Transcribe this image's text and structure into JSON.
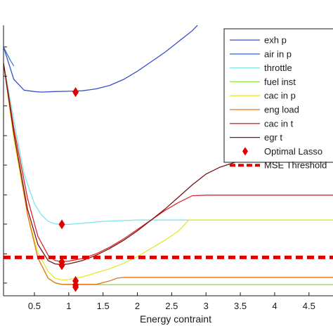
{
  "chart_data": {
    "type": "line",
    "title": "",
    "xlabel": "Energy contraint",
    "ylabel": "",
    "xlim": [
      0.05,
      4.85
    ],
    "ylim": [
      0,
      1
    ],
    "grid": false,
    "legend_position": "top-right",
    "x_ticks": [
      0.5,
      1,
      1.5,
      2,
      2.5,
      3,
      3.5,
      4,
      4.5
    ],
    "x_tick_labels": [
      "0.5",
      "1",
      "1.5",
      "2",
      "2.5",
      "3",
      "3.5",
      "4",
      "4.5"
    ],
    "y_ticks": [
      0.047,
      0.155,
      0.265,
      0.373,
      0.483,
      0.592,
      0.702,
      0.812,
      0.92
    ],
    "series": [
      {
        "name": "exh p",
        "color": "#3b4fc4",
        "points": [
          [
            0.05,
            0.92
          ],
          [
            0.2,
            0.8
          ],
          [
            0.35,
            0.76
          ],
          [
            0.5,
            0.755
          ],
          [
            0.6,
            0.753
          ],
          [
            0.8,
            0.755
          ],
          [
            1.0,
            0.756
          ],
          [
            1.2,
            0.758
          ],
          [
            1.4,
            0.765
          ],
          [
            1.6,
            0.778
          ],
          [
            1.8,
            0.8
          ],
          [
            2.0,
            0.83
          ],
          [
            2.2,
            0.865
          ],
          [
            2.4,
            0.9
          ],
          [
            2.6,
            0.94
          ],
          [
            2.8,
            0.98
          ],
          [
            2.95,
            1.02
          ]
        ]
      },
      {
        "name": "air in p",
        "color": "#3b78c4",
        "points": [
          [
            0.05,
            0.92
          ],
          [
            0.15,
            0.87
          ],
          [
            0.2,
            0.85
          ]
        ]
      },
      {
        "name": "throttle",
        "color": "#7fe6e6",
        "points": [
          [
            0.05,
            0.86
          ],
          [
            0.2,
            0.65
          ],
          [
            0.35,
            0.45
          ],
          [
            0.5,
            0.34
          ],
          [
            0.6,
            0.3
          ],
          [
            0.7,
            0.275
          ],
          [
            0.8,
            0.266
          ],
          [
            0.9,
            0.264
          ],
          [
            1.0,
            0.264
          ],
          [
            1.2,
            0.268
          ],
          [
            1.5,
            0.275
          ],
          [
            2.0,
            0.28
          ],
          [
            2.5,
            0.28
          ],
          [
            3.0,
            0.28
          ],
          [
            4.85,
            0.28
          ]
        ]
      },
      {
        "name": "fuel inst",
        "color": "#8ee04a",
        "points": [
          [
            0.05,
            0.86
          ],
          [
            0.2,
            0.6
          ],
          [
            0.4,
            0.3
          ],
          [
            0.55,
            0.14
          ],
          [
            0.7,
            0.065
          ],
          [
            0.8,
            0.048
          ],
          [
            0.9,
            0.042
          ],
          [
            1.0,
            0.041
          ],
          [
            1.2,
            0.041
          ],
          [
            1.5,
            0.041
          ],
          [
            2.0,
            0.041
          ],
          [
            3.0,
            0.041
          ],
          [
            4.85,
            0.041
          ]
        ]
      },
      {
        "name": "cac in p",
        "color": "#e6e62e",
        "points": [
          [
            0.05,
            0.86
          ],
          [
            0.2,
            0.58
          ],
          [
            0.4,
            0.3
          ],
          [
            0.55,
            0.16
          ],
          [
            0.7,
            0.09
          ],
          [
            0.8,
            0.065
          ],
          [
            0.9,
            0.058
          ],
          [
            1.0,
            0.06
          ],
          [
            1.2,
            0.07
          ],
          [
            1.4,
            0.085
          ],
          [
            1.6,
            0.1
          ],
          [
            1.8,
            0.12
          ],
          [
            2.0,
            0.145
          ],
          [
            2.2,
            0.175
          ],
          [
            2.4,
            0.205
          ],
          [
            2.6,
            0.24
          ],
          [
            2.75,
            0.28
          ],
          [
            3.0,
            0.28
          ],
          [
            4.85,
            0.28
          ]
        ]
      },
      {
        "name": "eng load",
        "color": "#e8751a",
        "points": [
          [
            0.05,
            0.86
          ],
          [
            0.2,
            0.6
          ],
          [
            0.4,
            0.3
          ],
          [
            0.55,
            0.14
          ],
          [
            0.7,
            0.065
          ],
          [
            0.8,
            0.048
          ],
          [
            0.9,
            0.042
          ],
          [
            1.0,
            0.042
          ],
          [
            1.2,
            0.042
          ],
          [
            1.4,
            0.042
          ],
          [
            1.6,
            0.055
          ],
          [
            1.7,
            0.065
          ],
          [
            1.8,
            0.068
          ],
          [
            2.0,
            0.068
          ],
          [
            3.0,
            0.068
          ],
          [
            4.85,
            0.068
          ]
        ]
      },
      {
        "name": "cac in t",
        "color": "#d9282f",
        "points": [
          [
            0.05,
            0.86
          ],
          [
            0.2,
            0.62
          ],
          [
            0.4,
            0.36
          ],
          [
            0.55,
            0.22
          ],
          [
            0.7,
            0.15
          ],
          [
            0.8,
            0.13
          ],
          [
            0.9,
            0.126
          ],
          [
            1.0,
            0.128
          ],
          [
            1.2,
            0.138
          ],
          [
            1.4,
            0.155
          ],
          [
            1.6,
            0.18
          ],
          [
            1.8,
            0.21
          ],
          [
            2.0,
            0.245
          ],
          [
            2.2,
            0.28
          ],
          [
            2.4,
            0.315
          ],
          [
            2.6,
            0.345
          ],
          [
            2.8,
            0.37
          ],
          [
            3.0,
            0.372
          ],
          [
            4.85,
            0.372
          ]
        ]
      },
      {
        "name": "egr t",
        "color": "#7a1414",
        "points": [
          [
            0.05,
            0.86
          ],
          [
            0.2,
            0.6
          ],
          [
            0.4,
            0.32
          ],
          [
            0.55,
            0.19
          ],
          [
            0.7,
            0.13
          ],
          [
            0.8,
            0.118
          ],
          [
            0.9,
            0.115
          ],
          [
            1.0,
            0.118
          ],
          [
            1.2,
            0.13
          ],
          [
            1.4,
            0.15
          ],
          [
            1.6,
            0.175
          ],
          [
            1.8,
            0.205
          ],
          [
            2.0,
            0.24
          ],
          [
            2.2,
            0.28
          ],
          [
            2.4,
            0.32
          ],
          [
            2.6,
            0.365
          ],
          [
            2.8,
            0.41
          ],
          [
            3.0,
            0.45
          ],
          [
            3.2,
            0.475
          ],
          [
            3.5,
            0.5
          ],
          [
            4.0,
            0.51
          ],
          [
            4.85,
            0.515
          ]
        ]
      }
    ],
    "optimal_lasso_markers": {
      "name": "Optimal Lasso",
      "color": "#e00000",
      "points": [
        [
          1.1,
          0.753
        ],
        [
          0.9,
          0.264
        ],
        [
          0.9,
          0.125
        ],
        [
          0.9,
          0.113
        ],
        [
          1.1,
          0.055
        ],
        [
          1.1,
          0.04
        ],
        [
          1.1,
          0.032
        ]
      ]
    },
    "mse_threshold": {
      "name": "MSE Threshold",
      "color": "#e00000",
      "value": 0.142
    }
  }
}
